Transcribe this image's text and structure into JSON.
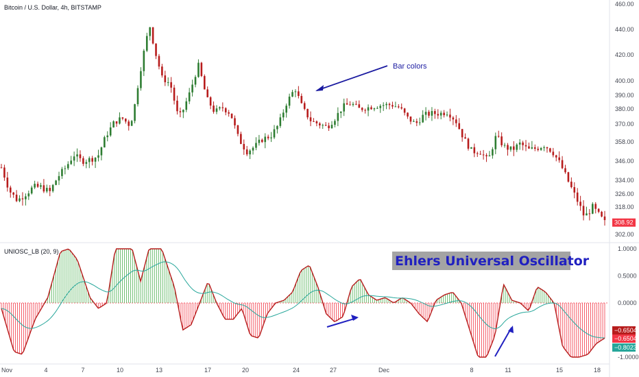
{
  "chart_data": [
    {
      "type": "candlestick",
      "title": "Bitcoin / U.S. Dollar, 4h, BITSTAMP",
      "x_tick_labels": [
        "Nov",
        "4",
        "7",
        "10",
        "13",
        "17",
        "20",
        "24",
        "27",
        "Dec",
        "8",
        "11",
        "15",
        "18"
      ],
      "y_tick_labels": [
        "460.00",
        "440.00",
        "420.00",
        "400.00",
        "390.00",
        "380.00",
        "370.00",
        "358.00",
        "346.00",
        "334.00",
        "326.00",
        "318.00",
        "302.00"
      ],
      "ylim": [
        298,
        462
      ],
      "last_price": "308.92",
      "annotation": "Bar colors",
      "colors": {
        "up": "#26a69a",
        "up_bar": "#2e7d32",
        "down": "#b71c1c",
        "last_price_badge": "#f23645"
      },
      "close_path": [
        {
          "t": 0,
          "v": 342
        },
        {
          "t": 2,
          "v": 328
        },
        {
          "t": 4,
          "v": 322
        },
        {
          "t": 6,
          "v": 326
        },
        {
          "t": 8,
          "v": 330
        },
        {
          "t": 10,
          "v": 330
        },
        {
          "t": 12,
          "v": 327
        },
        {
          "t": 14,
          "v": 336
        },
        {
          "t": 16,
          "v": 342
        },
        {
          "t": 18,
          "v": 350
        },
        {
          "t": 20,
          "v": 346
        },
        {
          "t": 22,
          "v": 347
        },
        {
          "t": 24,
          "v": 349
        },
        {
          "t": 26,
          "v": 362
        },
        {
          "t": 28,
          "v": 371
        },
        {
          "t": 30,
          "v": 374
        },
        {
          "t": 32,
          "v": 369
        },
        {
          "t": 33,
          "v": 380
        },
        {
          "t": 34,
          "v": 398
        },
        {
          "t": 36,
          "v": 432
        },
        {
          "t": 37,
          "v": 443
        },
        {
          "t": 38,
          "v": 425
        },
        {
          "t": 40,
          "v": 402
        },
        {
          "t": 42,
          "v": 398
        },
        {
          "t": 44,
          "v": 374
        },
        {
          "t": 45,
          "v": 378
        },
        {
          "t": 47,
          "v": 393
        },
        {
          "t": 49,
          "v": 412
        },
        {
          "t": 51,
          "v": 388
        },
        {
          "t": 53,
          "v": 378
        },
        {
          "t": 55,
          "v": 381
        },
        {
          "t": 57,
          "v": 377
        },
        {
          "t": 59,
          "v": 360
        },
        {
          "t": 61,
          "v": 352
        },
        {
          "t": 63,
          "v": 355
        },
        {
          "t": 65,
          "v": 360
        },
        {
          "t": 67,
          "v": 362
        },
        {
          "t": 69,
          "v": 370
        },
        {
          "t": 71,
          "v": 385
        },
        {
          "t": 73,
          "v": 395
        },
        {
          "t": 75,
          "v": 380
        },
        {
          "t": 77,
          "v": 372
        },
        {
          "t": 79,
          "v": 370
        },
        {
          "t": 81,
          "v": 368
        },
        {
          "t": 83,
          "v": 374
        },
        {
          "t": 85,
          "v": 382
        },
        {
          "t": 87,
          "v": 384
        },
        {
          "t": 89,
          "v": 380
        },
        {
          "t": 91,
          "v": 381
        },
        {
          "t": 93,
          "v": 382
        },
        {
          "t": 95,
          "v": 383
        },
        {
          "t": 97,
          "v": 383
        },
        {
          "t": 99,
          "v": 381
        },
        {
          "t": 101,
          "v": 374
        },
        {
          "t": 103,
          "v": 370
        },
        {
          "t": 105,
          "v": 376
        },
        {
          "t": 107,
          "v": 377
        },
        {
          "t": 109,
          "v": 377
        },
        {
          "t": 111,
          "v": 378
        },
        {
          "t": 113,
          "v": 372
        },
        {
          "t": 115,
          "v": 360
        },
        {
          "t": 117,
          "v": 352
        },
        {
          "t": 119,
          "v": 352
        },
        {
          "t": 121,
          "v": 346
        },
        {
          "t": 123,
          "v": 362
        },
        {
          "t": 125,
          "v": 355
        },
        {
          "t": 127,
          "v": 353
        },
        {
          "t": 129,
          "v": 357
        },
        {
          "t": 131,
          "v": 353
        },
        {
          "t": 133,
          "v": 354
        },
        {
          "t": 135,
          "v": 356
        },
        {
          "t": 137,
          "v": 352
        },
        {
          "t": 139,
          "v": 344
        },
        {
          "t": 141,
          "v": 333
        },
        {
          "t": 143,
          "v": 323
        },
        {
          "t": 145,
          "v": 312
        },
        {
          "t": 147,
          "v": 318
        },
        {
          "t": 149,
          "v": 312
        },
        {
          "t": 150,
          "v": 309
        }
      ]
    },
    {
      "type": "bar",
      "title": "UNIOSC_LB (20, 9)",
      "big_title": "Ehlers Universal Oscillator",
      "ylim": [
        -1.05,
        1.05
      ],
      "y_tick_labels": [
        "1.0000",
        "0.5000",
        "0.0000",
        "-1.0000"
      ],
      "value_labels": [
        {
          "text": "−0.6504",
          "color": "#b71c1c",
          "value": -0.6504
        },
        {
          "text": "−0.6504",
          "color": "#f23645",
          "value": -0.6504
        },
        {
          "text": "−0.8023",
          "color": "#26a69a",
          "value": -0.8023
        }
      ],
      "colors": {
        "positive": "#4caf50",
        "negative": "#f23645",
        "osc_line": "#b71c1c",
        "signal_line": "#26a69a"
      },
      "osc_path": [
        {
          "t": 0,
          "v": -0.1
        },
        {
          "t": 3,
          "v": -0.9
        },
        {
          "t": 5,
          "v": -0.95
        },
        {
          "t": 8,
          "v": -0.3
        },
        {
          "t": 11,
          "v": 0.1
        },
        {
          "t": 14,
          "v": 0.95
        },
        {
          "t": 16,
          "v": 1.0
        },
        {
          "t": 18,
          "v": 0.8
        },
        {
          "t": 21,
          "v": 0.1
        },
        {
          "t": 23,
          "v": -0.1
        },
        {
          "t": 25,
          "v": 0.0
        },
        {
          "t": 27,
          "v": 1.0
        },
        {
          "t": 31,
          "v": 1.0
        },
        {
          "t": 33,
          "v": 0.4
        },
        {
          "t": 35,
          "v": 1.0
        },
        {
          "t": 38,
          "v": 1.0
        },
        {
          "t": 41,
          "v": 0.3
        },
        {
          "t": 43,
          "v": -0.5
        },
        {
          "t": 45,
          "v": -0.4
        },
        {
          "t": 47,
          "v": 0.0
        },
        {
          "t": 49,
          "v": 0.4
        },
        {
          "t": 51,
          "v": 0.0
        },
        {
          "t": 53,
          "v": -0.3
        },
        {
          "t": 55,
          "v": -0.3
        },
        {
          "t": 57,
          "v": -0.1
        },
        {
          "t": 59,
          "v": -0.6
        },
        {
          "t": 61,
          "v": -0.65
        },
        {
          "t": 63,
          "v": -0.2
        },
        {
          "t": 65,
          "v": 0.0
        },
        {
          "t": 67,
          "v": 0.05
        },
        {
          "t": 69,
          "v": 0.2
        },
        {
          "t": 71,
          "v": 0.6
        },
        {
          "t": 73,
          "v": 0.7
        },
        {
          "t": 75,
          "v": 0.3
        },
        {
          "t": 77,
          "v": -0.2
        },
        {
          "t": 79,
          "v": -0.35
        },
        {
          "t": 81,
          "v": -0.25
        },
        {
          "t": 83,
          "v": 0.3
        },
        {
          "t": 85,
          "v": 0.45
        },
        {
          "t": 87,
          "v": 0.15
        },
        {
          "t": 89,
          "v": 0.05
        },
        {
          "t": 91,
          "v": 0.1
        },
        {
          "t": 93,
          "v": 0.0
        },
        {
          "t": 95,
          "v": 0.1
        },
        {
          "t": 97,
          "v": 0.0
        },
        {
          "t": 99,
          "v": -0.2
        },
        {
          "t": 101,
          "v": -0.35
        },
        {
          "t": 103,
          "v": 0.05
        },
        {
          "t": 105,
          "v": 0.15
        },
        {
          "t": 107,
          "v": 0.2
        },
        {
          "t": 109,
          "v": 0.0
        },
        {
          "t": 111,
          "v": -0.5
        },
        {
          "t": 113,
          "v": -1.0
        },
        {
          "t": 115,
          "v": -1.0
        },
        {
          "t": 117,
          "v": -0.6
        },
        {
          "t": 119,
          "v": 0.35
        },
        {
          "t": 121,
          "v": 0.05
        },
        {
          "t": 123,
          "v": 0.0
        },
        {
          "t": 125,
          "v": -0.15
        },
        {
          "t": 127,
          "v": 0.3
        },
        {
          "t": 129,
          "v": 0.2
        },
        {
          "t": 131,
          "v": 0.0
        },
        {
          "t": 133,
          "v": -0.8
        },
        {
          "t": 135,
          "v": -1.0
        },
        {
          "t": 137,
          "v": -1.0
        },
        {
          "t": 139,
          "v": -0.95
        },
        {
          "t": 141,
          "v": -0.75
        },
        {
          "t": 143,
          "v": -0.65
        }
      ]
    }
  ],
  "x_axis": {
    "tick_labels": [
      "Nov",
      "4",
      "7",
      "10",
      "13",
      "17",
      "20",
      "24",
      "27",
      "Dec",
      "8",
      "11",
      "15",
      "18"
    ]
  }
}
